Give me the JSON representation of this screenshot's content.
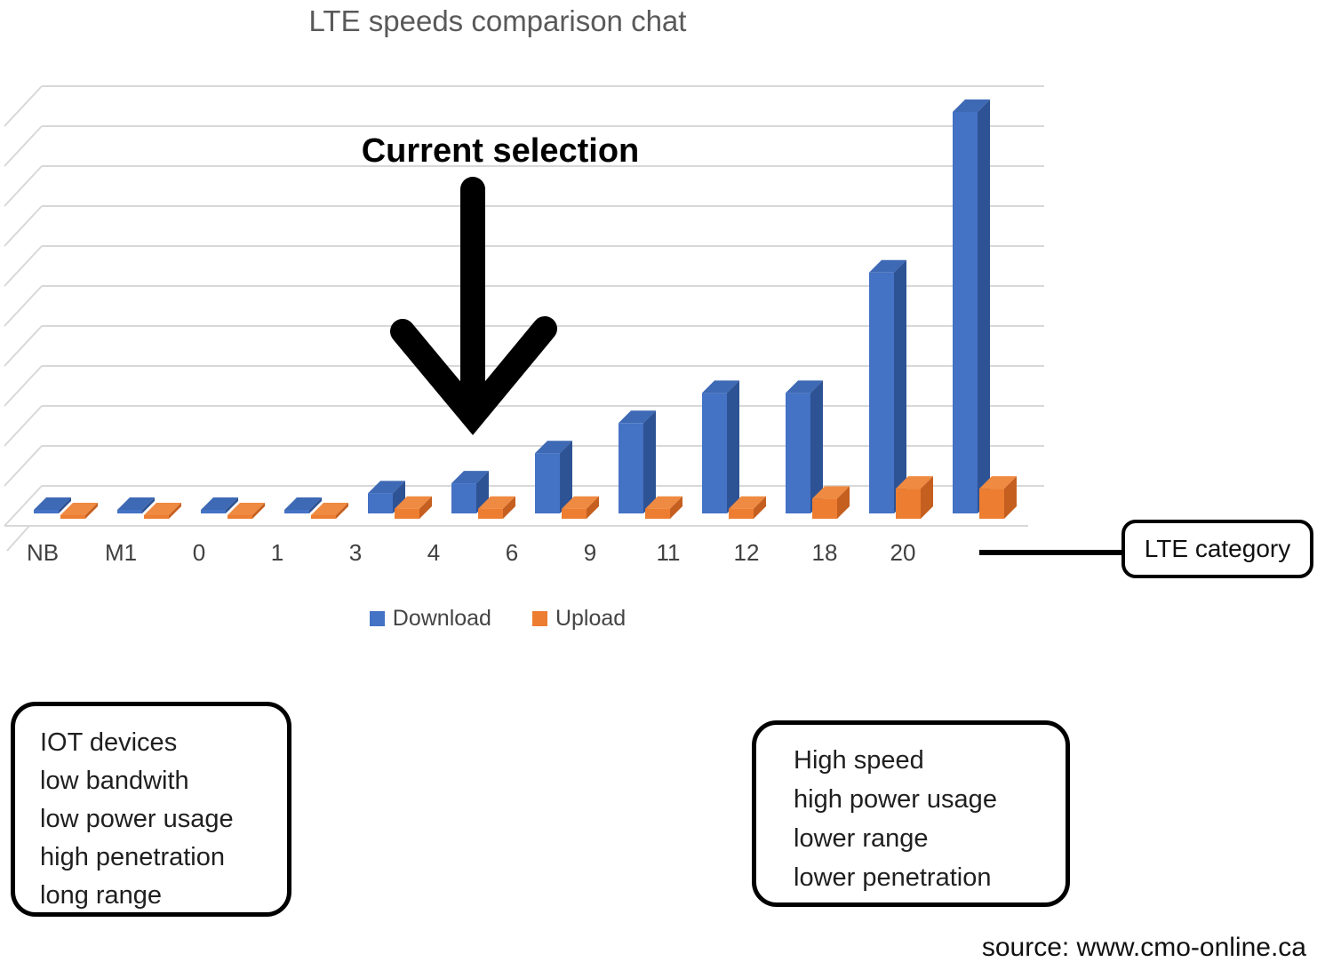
{
  "chart_data": {
    "type": "bar",
    "subtype": "3d-column",
    "title": "LTE speeds comparison chat",
    "xlabel": "LTE category",
    "ylabel": "",
    "y_axis_labeled": false,
    "ylim": [
      0,
      2100
    ],
    "gridlines": 11,
    "legend_position": "bottom",
    "categories": [
      "NB",
      "M1",
      "0",
      "1",
      "3",
      "4",
      "6",
      "9",
      "11",
      "12",
      "18",
      "20"
    ],
    "series": [
      {
        "name": "Download",
        "color": "#4472C4",
        "values": [
          0.03,
          1,
          1,
          10,
          100,
          150,
          300,
          450,
          600,
          600,
          1200,
          2000
        ]
      },
      {
        "name": "Upload",
        "color": "#ED7D31",
        "values": [
          0.06,
          1,
          1,
          5,
          50,
          50,
          50,
          50,
          50,
          100,
          150,
          150
        ]
      }
    ],
    "units": "Mbps (unlabeled axis, estimated)"
  },
  "annotation": {
    "label": "Current selection",
    "arrow_target_category": "4"
  },
  "callout": {
    "label": "LTE category"
  },
  "info_boxes": [
    {
      "id": "left",
      "lines": [
        "IOT devices",
        "low bandwith",
        "low power usage",
        "high penetration",
        "long range"
      ]
    },
    {
      "id": "right",
      "lines": [
        "High speed",
        "high power usage",
        "lower range",
        "lower penetration"
      ]
    }
  ],
  "source": "source: www.cmo-online.ca",
  "colors": {
    "download_front": "#4472C4",
    "download_top": "#3E69B5",
    "download_side": "#2E5395",
    "upload_front": "#ED7D31",
    "upload_top": "#EF8A42",
    "upload_side": "#C55F1F",
    "gridline": "#D8D8D8",
    "title_text": "#595959",
    "axis_text": "#404040",
    "arrow": "#000000"
  }
}
